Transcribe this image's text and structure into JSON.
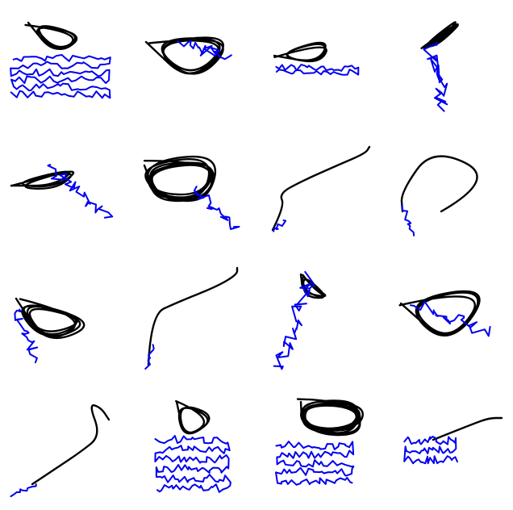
{
  "grid": {
    "rows": 4,
    "cols": 4
  },
  "colors": {
    "black_trajectory": "#000000",
    "blue_trajectory": "#0000ee",
    "background": "#ffffff"
  },
  "panels": [
    {
      "black_shape": "triangle-loop",
      "blue_shape": "long-wiggle-horizontal"
    },
    {
      "black_shape": "triangle-loop",
      "blue_shape": "short-wiggle"
    },
    {
      "black_shape": "triangle-loop",
      "blue_shape": "short-wiggle"
    },
    {
      "black_shape": "triangle-loop",
      "blue_shape": "wiggle-down"
    },
    {
      "black_shape": "flat-blob",
      "blue_shape": "wiggle-down"
    },
    {
      "black_shape": "circle-loop",
      "blue_shape": "wiggle-down"
    },
    {
      "black_shape": "open-curve",
      "blue_shape": "short-wiggle"
    },
    {
      "black_shape": "open-triangle",
      "blue_shape": "short-wiggle"
    },
    {
      "black_shape": "triangle-loop",
      "blue_shape": "wiggle-down"
    },
    {
      "black_shape": "open-curve",
      "blue_shape": "short-wiggle"
    },
    {
      "black_shape": "small-loop",
      "blue_shape": "wiggle-down"
    },
    {
      "black_shape": "triangle-loop",
      "blue_shape": "short-wiggle"
    },
    {
      "black_shape": "open-curve",
      "blue_shape": "short-wiggle"
    },
    {
      "black_shape": "triangle-loop",
      "blue_shape": "long-wiggle-horizontal"
    },
    {
      "black_shape": "circle-loop",
      "blue_shape": "long-wiggle-horizontal"
    },
    {
      "black_shape": "open-curve",
      "blue_shape": "long-wiggle-horizontal"
    }
  ]
}
